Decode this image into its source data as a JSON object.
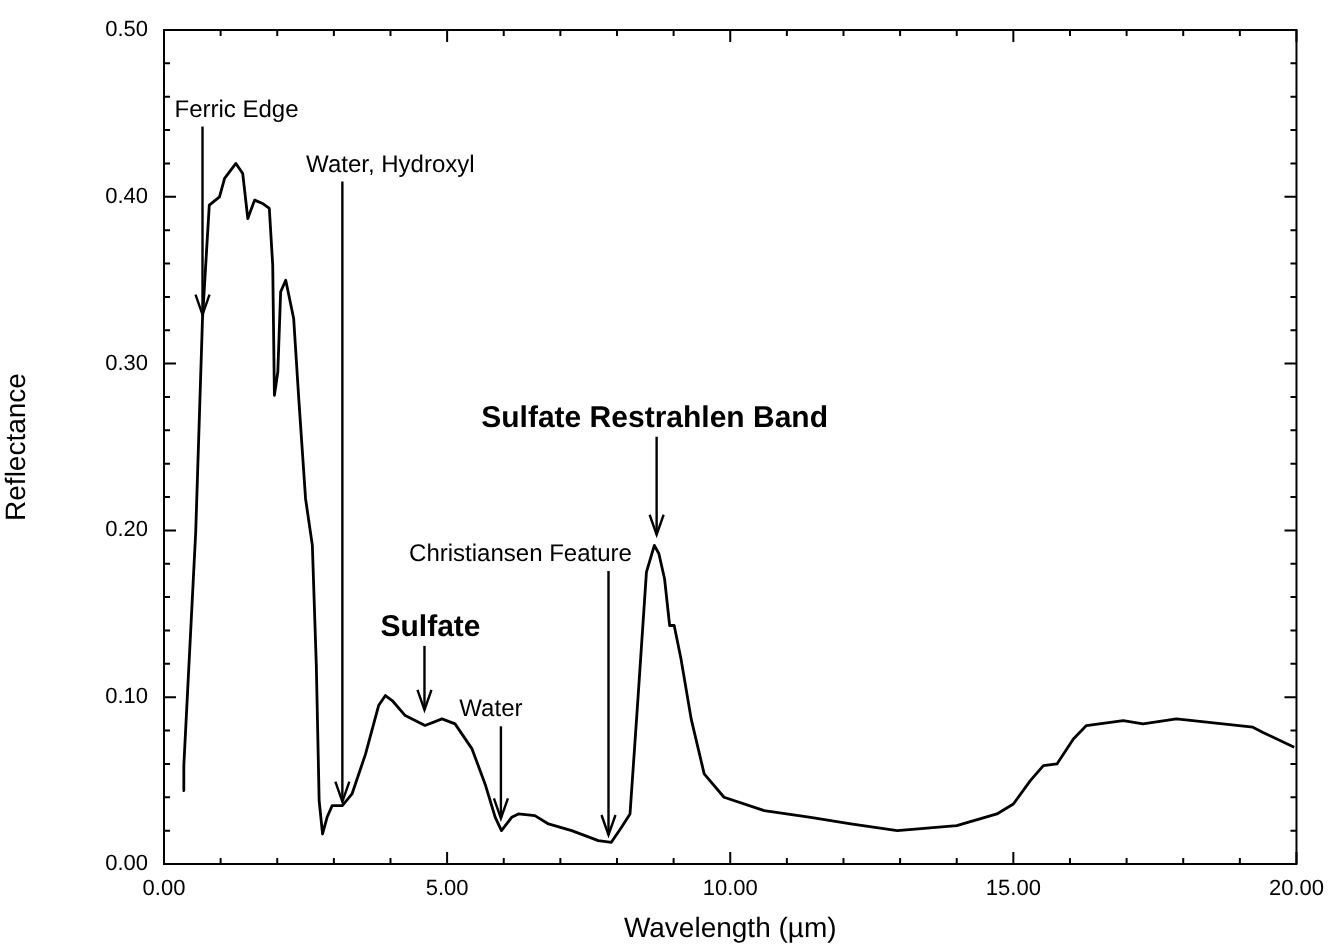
{
  "chart_data": {
    "type": "line",
    "xlabel": "Wavelength (µm)",
    "ylabel": "Reflectance",
    "marker": "none",
    "legend": false,
    "grid": false,
    "xlim": [
      0,
      20
    ],
    "ylim": [
      0,
      0.5
    ],
    "xticks": [
      {
        "value": 0,
        "label": "0.00"
      },
      {
        "value": 1,
        "label": null
      },
      {
        "value": 2,
        "label": null
      },
      {
        "value": 3,
        "label": null
      },
      {
        "value": 4,
        "label": null
      },
      {
        "value": 5,
        "label": "5.00"
      },
      {
        "value": 6,
        "label": null
      },
      {
        "value": 7,
        "label": null
      },
      {
        "value": 8,
        "label": null
      },
      {
        "value": 9,
        "label": null
      },
      {
        "value": 10,
        "label": "10.00"
      },
      {
        "value": 11,
        "label": null
      },
      {
        "value": 12,
        "label": null
      },
      {
        "value": 13,
        "label": null
      },
      {
        "value": 14,
        "label": null
      },
      {
        "value": 15,
        "label": "15.00"
      },
      {
        "value": 16,
        "label": null
      },
      {
        "value": 17,
        "label": null
      },
      {
        "value": 18,
        "label": null
      },
      {
        "value": 19,
        "label": null
      },
      {
        "value": 20,
        "label": "20.00"
      }
    ],
    "yticks": [
      {
        "value": 0,
        "label": "0.00"
      },
      {
        "value": 0.02,
        "label": null
      },
      {
        "value": 0.04,
        "label": null
      },
      {
        "value": 0.06,
        "label": null
      },
      {
        "value": 0.08,
        "label": null
      },
      {
        "value": 0.1,
        "label": "0.10"
      },
      {
        "value": 0.12,
        "label": null
      },
      {
        "value": 0.14,
        "label": null
      },
      {
        "value": 0.16,
        "label": null
      },
      {
        "value": 0.18,
        "label": null
      },
      {
        "value": 0.2,
        "label": "0.20"
      },
      {
        "value": 0.22,
        "label": null
      },
      {
        "value": 0.24,
        "label": null
      },
      {
        "value": 0.26,
        "label": null
      },
      {
        "value": 0.28,
        "label": null
      },
      {
        "value": 0.3,
        "label": "0.30"
      },
      {
        "value": 0.32,
        "label": null
      },
      {
        "value": 0.34,
        "label": null
      },
      {
        "value": 0.36,
        "label": null
      },
      {
        "value": 0.38,
        "label": null
      },
      {
        "value": 0.4,
        "label": "0.40"
      },
      {
        "value": 0.42,
        "label": null
      },
      {
        "value": 0.44,
        "label": null
      },
      {
        "value": 0.46,
        "label": null
      },
      {
        "value": 0.48,
        "label": null
      },
      {
        "value": 0.5,
        "label": "0.50"
      }
    ],
    "series": [
      {
        "color": "#000000",
        "x": [
          0.33,
          0.35,
          0.56,
          0.68,
          0.8,
          0.98,
          1.07,
          1.27,
          1.39,
          1.48,
          1.6,
          1.74,
          1.86,
          1.92,
          1.95,
          2.01,
          2.06,
          2.15,
          2.29,
          2.38,
          2.5,
          2.62,
          2.69,
          2.74,
          2.8,
          2.88,
          2.97,
          3.15,
          3.32,
          3.56,
          3.79,
          3.91,
          4.03,
          4.26,
          4.61,
          4.91,
          5.14,
          5.44,
          5.67,
          5.85,
          5.96,
          6.14,
          6.26,
          6.55,
          6.79,
          7.2,
          7.67,
          7.9,
          8.08,
          8.23,
          8.37,
          8.52,
          8.66,
          8.74,
          8.84,
          8.93,
          9.01,
          9.13,
          9.31,
          9.54,
          9.89,
          10.6,
          11.42,
          12.13,
          12.95,
          14,
          14.71,
          15,
          15.3,
          15.53,
          15.77,
          16.06,
          16.29,
          16.94,
          17.29,
          17.88,
          18.7,
          19.23,
          19.4,
          19.96
        ],
        "values": [
          0.044,
          0.059,
          0.199,
          0.327,
          0.395,
          0.4,
          0.411,
          0.42,
          0.414,
          0.387,
          0.398,
          0.396,
          0.393,
          0.359,
          0.281,
          0.295,
          0.343,
          0.35,
          0.327,
          0.279,
          0.219,
          0.191,
          0.119,
          0.038,
          0.018,
          0.028,
          0.035,
          0.035,
          0.042,
          0.066,
          0.095,
          0.101,
          0.098,
          0.089,
          0.083,
          0.087,
          0.084,
          0.069,
          0.048,
          0.028,
          0.02,
          0.028,
          0.03,
          0.029,
          0.024,
          0.02,
          0.014,
          0.013,
          0.022,
          0.03,
          0.099,
          0.175,
          0.191,
          0.186,
          0.171,
          0.143,
          0.143,
          0.123,
          0.087,
          0.054,
          0.04,
          0.032,
          0.028,
          0.024,
          0.02,
          0.023,
          0.03,
          0.036,
          0.05,
          0.059,
          0.06,
          0.075,
          0.083,
          0.086,
          0.084,
          0.087,
          0.084,
          0.082,
          0.079,
          0.07
        ]
      }
    ],
    "annotations": [
      {
        "text": "Ferric Edge",
        "x": 0.68,
        "y": 0.327
      },
      {
        "text": "Water, Hydroxyl",
        "x": 3.15,
        "y": 0.035
      },
      {
        "text": "Sulfate",
        "x": 4.6,
        "y": 0.09
      },
      {
        "text": "Water",
        "x": 5.95,
        "y": 0.025
      },
      {
        "text": "Christiansen Feature",
        "x": 7.85,
        "y": 0.015
      },
      {
        "text": "Sulfate Restrahlen Band",
        "x": 8.7,
        "y": 0.195
      }
    ]
  }
}
